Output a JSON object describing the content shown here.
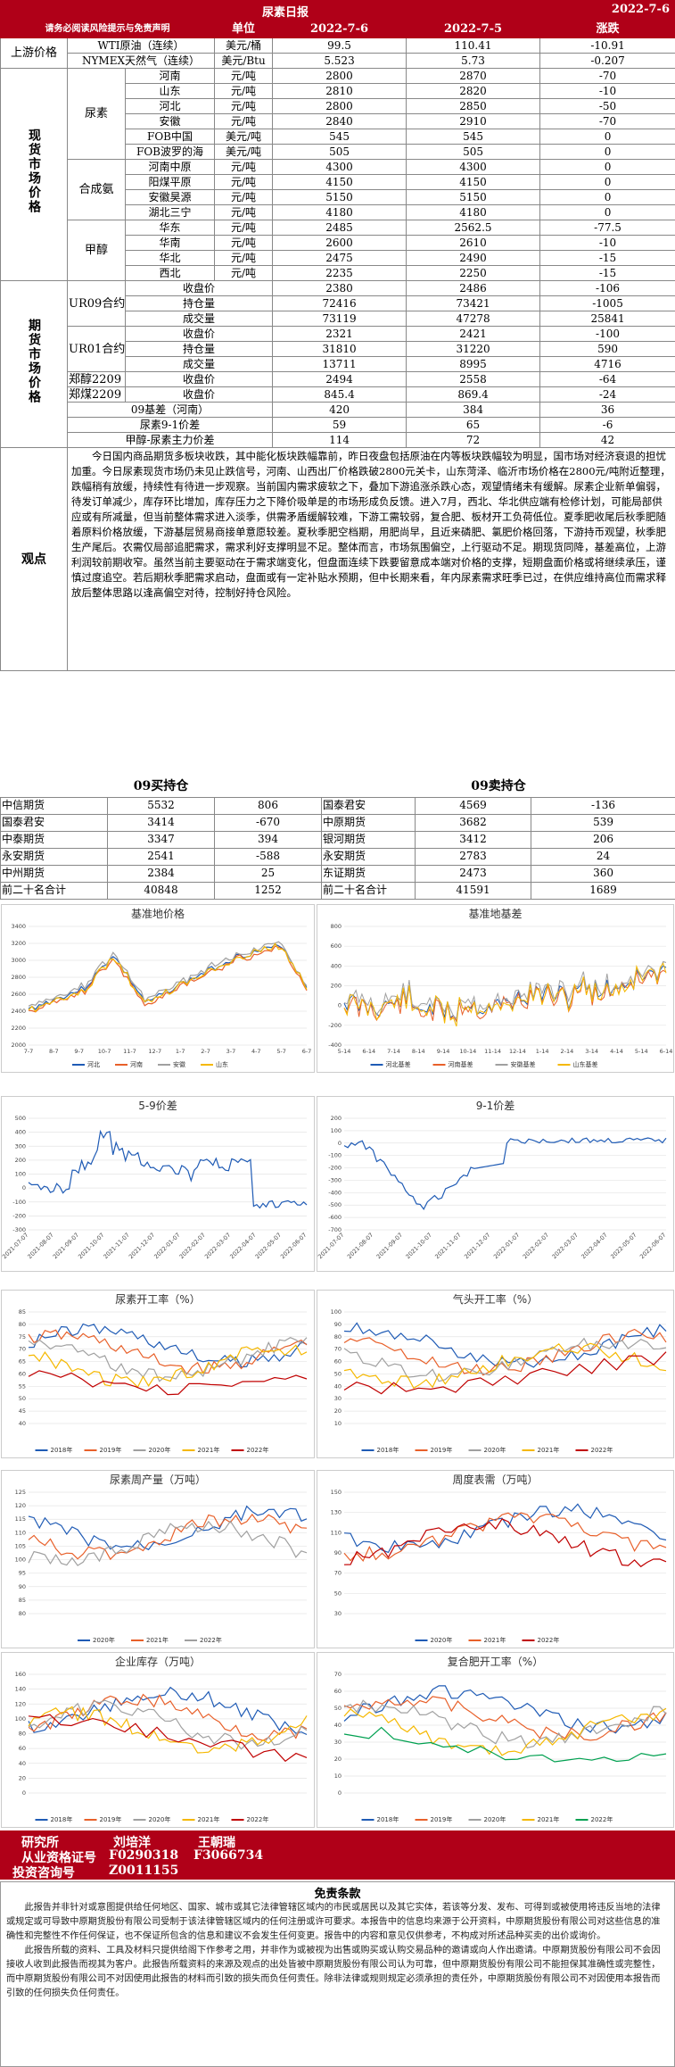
{
  "report_title": "尿素日报",
  "report_date": "2022-7-6",
  "header": {
    "note": "请务必阅读风险提示与免责声明",
    "unit": "单位",
    "d1": "2022-7-6",
    "d2": "2022-7-5",
    "chg": "涨跌"
  },
  "upstream": {
    "label": "上游价格",
    "rows": [
      {
        "name": "WTI原油（连续）",
        "unit": "美元/桶",
        "v1": "99.5",
        "v2": "110.41",
        "chg": "-10.91"
      },
      {
        "name": "NYMEX天然气（连续）",
        "unit": "美元/Btu",
        "v1": "5.523",
        "v2": "5.73",
        "chg": "-0.207"
      }
    ]
  },
  "spot": {
    "label": "现货市场价格",
    "groups": [
      {
        "name": "尿素",
        "rows": [
          {
            "region": "河南",
            "unit": "元/吨",
            "v1": "2800",
            "v2": "2870",
            "chg": "-70"
          },
          {
            "region": "山东",
            "unit": "元/吨",
            "v1": "2810",
            "v2": "2820",
            "chg": "-10"
          },
          {
            "region": "河北",
            "unit": "元/吨",
            "v1": "2800",
            "v2": "2850",
            "chg": "-50"
          },
          {
            "region": "安徽",
            "unit": "元/吨",
            "v1": "2840",
            "v2": "2910",
            "chg": "-70"
          },
          {
            "region": "FOB中国",
            "unit": "美元/吨",
            "v1": "545",
            "v2": "545",
            "chg": "0"
          },
          {
            "region": "FOB波罗的海",
            "unit": "美元/吨",
            "v1": "505",
            "v2": "505",
            "chg": "0"
          }
        ]
      },
      {
        "name": "合成氨",
        "rows": [
          {
            "region": "河南中原",
            "unit": "元/吨",
            "v1": "4300",
            "v2": "4300",
            "chg": "0"
          },
          {
            "region": "阳煤平原",
            "unit": "元/吨",
            "v1": "4150",
            "v2": "4150",
            "chg": "0"
          },
          {
            "region": "安徽昊源",
            "unit": "元/吨",
            "v1": "5150",
            "v2": "5150",
            "chg": "0"
          },
          {
            "region": "湖北三宁",
            "unit": "元/吨",
            "v1": "4180",
            "v2": "4180",
            "chg": "0"
          }
        ]
      },
      {
        "name": "甲醇",
        "rows": [
          {
            "region": "华东",
            "unit": "元/吨",
            "v1": "2485",
            "v2": "2562.5",
            "chg": "-77.5"
          },
          {
            "region": "华南",
            "unit": "元/吨",
            "v1": "2600",
            "v2": "2610",
            "chg": "-10"
          },
          {
            "region": "华北",
            "unit": "元/吨",
            "v1": "2475",
            "v2": "2490",
            "chg": "-15"
          },
          {
            "region": "西北",
            "unit": "元/吨",
            "v1": "2235",
            "v2": "2250",
            "chg": "-15"
          }
        ]
      }
    ]
  },
  "futures": {
    "label": "期货市场价格",
    "groups": [
      {
        "name": "UR09合约",
        "rows": [
          {
            "item": "收盘价",
            "v1": "2380",
            "v2": "2486",
            "chg": "-106"
          },
          {
            "item": "持仓量",
            "v1": "72416",
            "v2": "73421",
            "chg": "-1005"
          },
          {
            "item": "成交量",
            "v1": "73119",
            "v2": "47278",
            "chg": "25841"
          }
        ]
      },
      {
        "name": "UR01合约",
        "rows": [
          {
            "item": "收盘价",
            "v1": "2321",
            "v2": "2421",
            "chg": "-100"
          },
          {
            "item": "持仓量",
            "v1": "31810",
            "v2": "31220",
            "chg": "590"
          },
          {
            "item": "成交量",
            "v1": "13711",
            "v2": "8995",
            "chg": "4716"
          }
        ]
      },
      {
        "name": "郑醇2209",
        "rows": [
          {
            "item": "收盘价",
            "v1": "2494",
            "v2": "2558",
            "chg": "-64"
          }
        ]
      },
      {
        "name": "郑煤2209",
        "rows": [
          {
            "item": "收盘价",
            "v1": "845.4",
            "v2": "869.4",
            "chg": "-24"
          }
        ]
      }
    ],
    "spreads": [
      {
        "item": "09基差（河南）",
        "v1": "420",
        "v2": "384",
        "chg": "36"
      },
      {
        "item": "尿素9-1价差",
        "v1": "59",
        "v2": "65",
        "chg": "-6"
      },
      {
        "item": "甲醇-尿素主力价差",
        "v1": "114",
        "v2": "72",
        "chg": "42"
      }
    ]
  },
  "observation": {
    "label": "观点",
    "text": "今日国内商品期货多板块收跌，其中能化板块跌幅靠前，昨日夜盘包括原油在内等板块跌幅较为明显，国市场对经济衰退的担忧加重。今日尿素现货市场仍未见止跌信号，河南、山西出厂价格跌破2800元关卡，山东菏泽、临沂市场价格在2800元/吨附近整理，跌幅稍有放缓，持续性有待进一步观察。当前国内需求疲软之下，叠加下游追涨杀跌心态，观望情绪未有缓解。尿素企业新单偏弱，待发订单减少，库存环比增加，库存压力之下降价吸单是的市场形成负反馈。进入7月，西北、华北供应端有检修计划，可能局部供应或有所减量，但当前整体需求进入淡季，供需矛盾缓解较难，下游工需较弱，复合肥、板材开工负荷低位。夏季肥收尾后秋季肥随着原料价格放缓，下游基层贸易商接单意愿较差。夏秋季肥空档期，用肥尚早，且近来磷肥、氯肥价格回落，下游持币观望，秋季肥生产尾后。农需仅局部追肥需求，需求利好支撑明显不足。整体而言，市场氛围偏空，上行驱动不足。期现货同降，基差高位，上游利润较前期收窄。虽然当前主要驱动在于需求端变化，但盘面连续下跌要留意成本端对价格的支撑，短期盘面价格或将继续承压，谨慎过度追空。若后期秋季肥需求启动，盘面或有一定补贴水预期，但中长期来看，年内尿素需求旺季已过，在供应维持高位而需求释放后整体思路以逢高偏空对待，控制好持仓风险。"
  },
  "positions": {
    "long_title": "09买持仓",
    "short_title": "09卖持仓",
    "long": [
      {
        "name": "中信期货",
        "v": "5532",
        "chg": "806"
      },
      {
        "name": "国泰君安",
        "v": "3414",
        "chg": "-670"
      },
      {
        "name": "中泰期货",
        "v": "3347",
        "chg": "394"
      },
      {
        "name": "永安期货",
        "v": "2541",
        "chg": "-588"
      },
      {
        "name": "中州期货",
        "v": "2384",
        "chg": "25"
      },
      {
        "name": "前二十名合计",
        "v": "40848",
        "chg": "1252"
      }
    ],
    "short": [
      {
        "name": "国泰君安",
        "v": "4569",
        "chg": "-136"
      },
      {
        "name": "中原期货",
        "v": "3682",
        "chg": "539"
      },
      {
        "name": "银河期货",
        "v": "3412",
        "chg": "206"
      },
      {
        "name": "永安期货",
        "v": "2783",
        "chg": "24"
      },
      {
        "name": "东证期货",
        "v": "2473",
        "chg": "360"
      },
      {
        "name": "前二十名合计",
        "v": "41591",
        "chg": "1689"
      }
    ]
  },
  "charts": {
    "c1": {
      "title": "基准地价格",
      "legend": [
        "河北",
        "河南",
        "安徽",
        "山东"
      ],
      "yticks": [
        "3400",
        "3200",
        "3000",
        "2800",
        "2600",
        "2400",
        "2200",
        "2000"
      ],
      "xticks": [
        "7-7",
        "8-7",
        "9-7",
        "10-7",
        "11-7",
        "12-7",
        "1-7",
        "2-7",
        "3-7",
        "4-7",
        "5-7",
        "6-7"
      ],
      "colors": [
        "#1f5bb5",
        "#e8602a",
        "#a0a0a0",
        "#f5b800"
      ]
    },
    "c2": {
      "title": "基准地基差",
      "legend": [
        "河北基差",
        "河南基差",
        "安徽基差",
        "山东基差"
      ],
      "yticks": [
        "800",
        "600",
        "400",
        "200",
        "0",
        "-200",
        "-400"
      ],
      "xticks": [
        "5-14",
        "6-14",
        "7-14",
        "8-14",
        "9-14",
        "10-14",
        "11-14",
        "12-14",
        "1-14",
        "2-14",
        "3-14",
        "4-14",
        "5-14",
        "6-14"
      ],
      "colors": [
        "#1f5bb5",
        "#e8602a",
        "#a0a0a0",
        "#f5b800"
      ]
    },
    "c3": {
      "title": "5-9价差",
      "yticks": [
        "500",
        "400",
        "300",
        "200",
        "100",
        "0",
        "-100",
        "-200",
        "-300"
      ],
      "xticks": [
        "2021-07-07",
        "2021-08-07",
        "2021-09-07",
        "2021-10-07",
        "2021-11-07",
        "2021-12-07",
        "2022-01-07",
        "2022-02-07",
        "2022-03-07",
        "2022-04-07",
        "2022-05-07",
        "2022-06-07"
      ]
    },
    "c4": {
      "title": "9-1价差",
      "yticks": [
        "200",
        "100",
        "0",
        "-100",
        "-200",
        "-300",
        "-400",
        "-500",
        "-600",
        "-700"
      ],
      "xticks": [
        "2021-07-07",
        "2021-08-07",
        "2021-09-07",
        "2021-10-07",
        "2021-11-07",
        "2021-12-07",
        "2022-01-07",
        "2022-02-07",
        "2022-03-07",
        "2022-04-07",
        "2022-05-07",
        "2022-06-07"
      ]
    },
    "c5": {
      "title": "尿素开工率（%）",
      "legend": [
        "2018年",
        "2019年",
        "2020年",
        "2021年",
        "2022年"
      ],
      "yticks": [
        "85",
        "80",
        "75",
        "70",
        "65",
        "60",
        "55",
        "50",
        "45",
        "40"
      ],
      "colors": [
        "#1f5bb5",
        "#e8602a",
        "#a0a0a0",
        "#f5b800",
        "#c00000"
      ]
    },
    "c6": {
      "title": "气头开工率（%）",
      "legend": [
        "2018年",
        "2019年",
        "2020年",
        "2021年",
        "2022年"
      ],
      "yticks": [
        "100",
        "90",
        "80",
        "70",
        "60",
        "50",
        "40",
        "30",
        "20",
        "10"
      ],
      "colors": [
        "#1f5bb5",
        "#e8602a",
        "#a0a0a0",
        "#f5b800",
        "#c00000"
      ]
    },
    "c7": {
      "title": "尿素周产量（万吨）",
      "legend": [
        "2020年",
        "2021年",
        "2022年"
      ],
      "yticks": [
        "125",
        "120",
        "115",
        "110",
        "105",
        "100",
        "95",
        "90",
        "85",
        "80"
      ],
      "colors": [
        "#1f5bb5",
        "#e8602a",
        "#a0a0a0"
      ]
    },
    "c8": {
      "title": "周度表需（万吨）",
      "legend": [
        "2020年",
        "2021年",
        "2022年"
      ],
      "yticks": [
        "150",
        "130",
        "110",
        "90",
        "70",
        "50",
        "30"
      ],
      "colors": [
        "#1f5bb5",
        "#e8602a",
        "#c00000"
      ]
    },
    "c9": {
      "title": "企业库存（万吨）",
      "legend": [
        "2018年",
        "2019年",
        "2020年",
        "2021年",
        "2022年"
      ],
      "yticks": [
        "160",
        "140",
        "120",
        "100",
        "80",
        "60",
        "40",
        "20",
        "0"
      ],
      "colors": [
        "#1f5bb5",
        "#e8602a",
        "#a0a0a0",
        "#f5b800",
        "#c00000"
      ]
    },
    "c10": {
      "title": "复合肥开工率（%）",
      "legend": [
        "2018年",
        "2019年",
        "2020年",
        "2021年",
        "2022年"
      ],
      "yticks": [
        "70",
        "60",
        "50",
        "40",
        "30",
        "20",
        "10",
        "0"
      ],
      "colors": [
        "#1f5bb5",
        "#e8602a",
        "#a0a0a0",
        "#f5b800",
        "#00a050"
      ]
    }
  },
  "footer": {
    "dept": "研究所",
    "name1": "刘培洋",
    "name2": "王朝瑞",
    "qual_label": "从业资格证号",
    "qual1": "F0290318",
    "qual2": "F3066734",
    "consult_label": "投资咨询号",
    "consult1": "Z0011155"
  },
  "disclaimer": {
    "title": "免责条款",
    "p1": "此报告并非针对或意图提供给任何地区、国家、城市或其它法律管辖区域内的市民或居民以及其它实体，若该等分发、发布、可得到或被使用将违反当地的法律或规定或可导致中原期货股份有限公司受制于该法律管辖区域内的任何注册或许可要求。本报告中的信息均来源于公开资料，中原期货股份有限公司对这些信息的准确性和完整性不作任何保证，也不保证所包含的信息和建议不会发生任何变更。报告中的内容和意见仅供参考，不构成对所述品种买卖的出价或询价。",
    "p2": "此报告所载的资料、工具及材料只提供给阁下作参考之用，并非作为或被视为出售或购买或认购交易品种的邀请或向人作出邀请。中原期货股份有限公司不会因接收人收到此报告而视其为客户。此报告所载资料的来源及观点的出处皆被中原期货股份有限公司认为可靠，但中原期货股份有限公司不能担保其准确性或完整性，而中原期货股份有限公司不对因使用此报告的材料而引致的损失而负任何责任。除非法律或规则规定必须承担的责任外，中原期货股份有限公司不对因使用本报告而引致的任何损失负任何责任。"
  }
}
